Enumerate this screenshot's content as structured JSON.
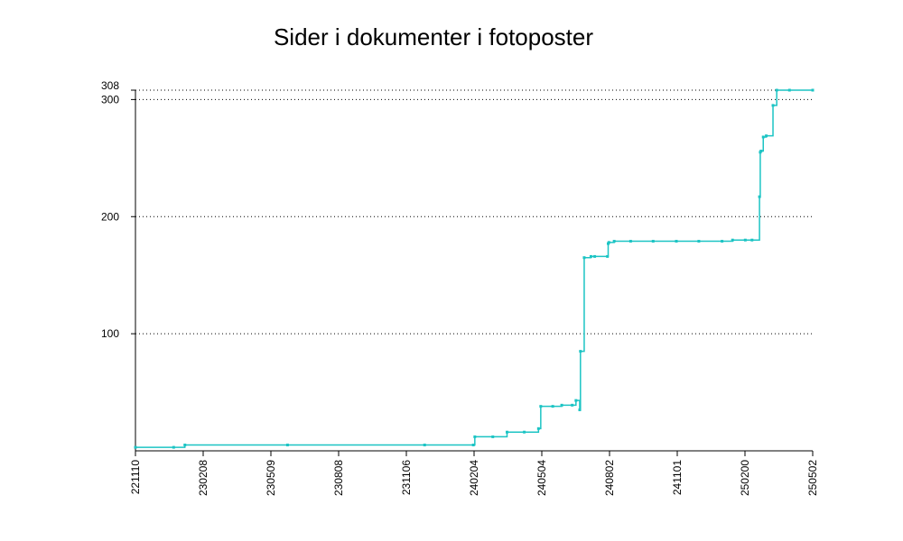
{
  "chart_data": {
    "type": "line",
    "title": "Sider i dokumenter i fotoposter",
    "xlabel": "",
    "ylabel": "",
    "x_ticks": [
      "221110",
      "230208",
      "230509",
      "230808",
      "231106",
      "240204",
      "240504",
      "240802",
      "241101",
      "250200",
      "250502"
    ],
    "y_ticks": [
      100,
      200,
      300,
      308
    ],
    "ylim": [
      0,
      308
    ],
    "grid": "horizontal-dotted",
    "line_color": "#1cc4c4",
    "series": [
      {
        "x": [
          "221110",
          "221231",
          "230115",
          "230601",
          "231201",
          "240204",
          "240206",
          "240301",
          "240320",
          "240412",
          "240501",
          "240504",
          "240520",
          "240601",
          "240615",
          "240620",
          "240625",
          "240626",
          "240701",
          "240710",
          "240715",
          "240801",
          "240802",
          "240803",
          "240810",
          "240901",
          "241001",
          "241101",
          "241201",
          "250100",
          "250115",
          "250200",
          "250210",
          "250220",
          "250221",
          "250222",
          "250225",
          "250301",
          "250310",
          "250315",
          "250401",
          "250502"
        ],
        "y": [
          3,
          3,
          5,
          5,
          5,
          5,
          12,
          12,
          16,
          16,
          19,
          38,
          38,
          39,
          39,
          43,
          35,
          85,
          165,
          166,
          166,
          166,
          177,
          178,
          179,
          179,
          179,
          179,
          179,
          179,
          180,
          180,
          180,
          217,
          255,
          256,
          268,
          269,
          295,
          308,
          308,
          308
        ]
      }
    ]
  }
}
